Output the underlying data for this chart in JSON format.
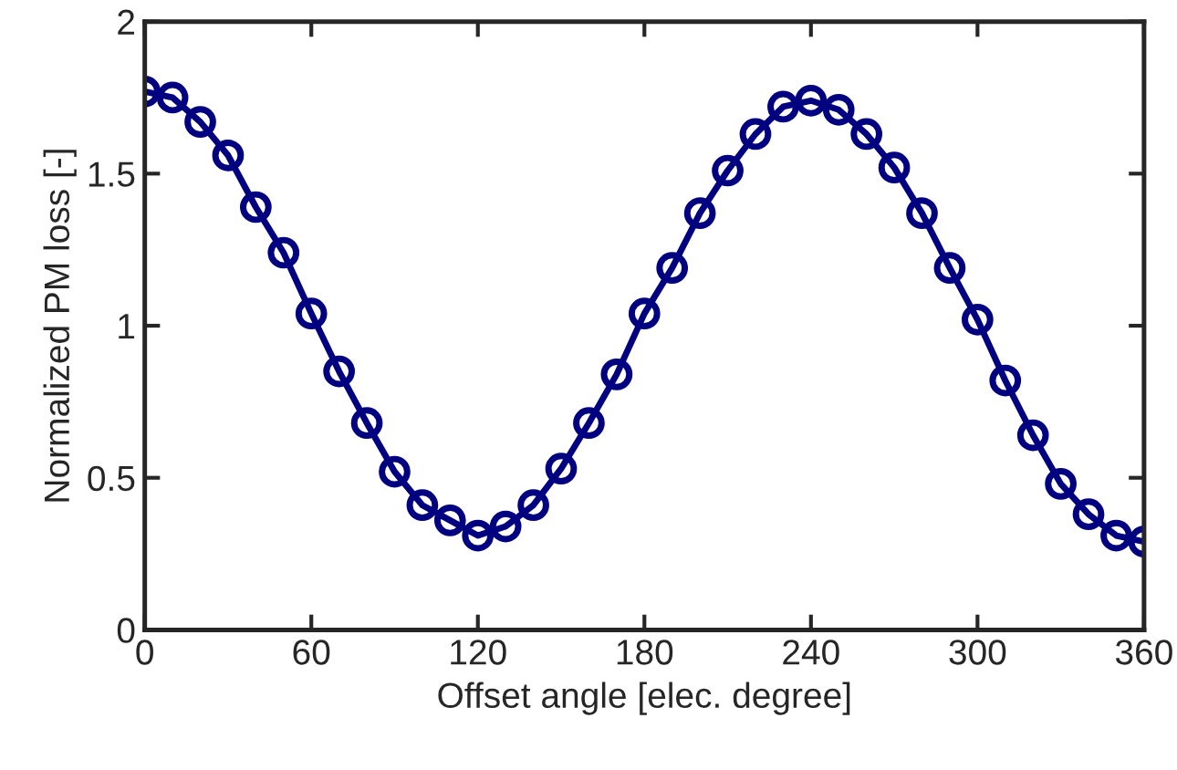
{
  "chart_data": {
    "type": "line",
    "xlabel": "Offset angle [elec. degree]",
    "ylabel": "Normalized PM loss [-]",
    "x": [
      0,
      10,
      20,
      30,
      40,
      50,
      60,
      70,
      80,
      90,
      100,
      110,
      120,
      130,
      140,
      150,
      160,
      170,
      180,
      190,
      200,
      210,
      220,
      230,
      240,
      250,
      260,
      270,
      280,
      290,
      300,
      310,
      320,
      330,
      340,
      350,
      360
    ],
    "series": [
      {
        "color": "#000080",
        "values": [
          1.77,
          1.75,
          1.67,
          1.56,
          1.39,
          1.24,
          1.04,
          0.85,
          0.68,
          0.52,
          0.41,
          0.36,
          0.31,
          0.34,
          0.41,
          0.53,
          0.68,
          0.84,
          1.04,
          1.19,
          1.37,
          1.51,
          1.63,
          1.72,
          1.74,
          1.71,
          1.63,
          1.52,
          1.37,
          1.19,
          1.02,
          0.82,
          0.64,
          0.48,
          0.38,
          0.31,
          0.29
        ]
      }
    ],
    "xlim": [
      0,
      360
    ],
    "xticks": [
      0,
      60,
      120,
      180,
      240,
      300,
      360
    ],
    "ylim": [
      0,
      2
    ],
    "yticks": [
      0,
      0.5,
      1,
      1.5,
      2
    ],
    "marker": "circle",
    "line_style": "solid",
    "grid": false,
    "legend": false
  }
}
